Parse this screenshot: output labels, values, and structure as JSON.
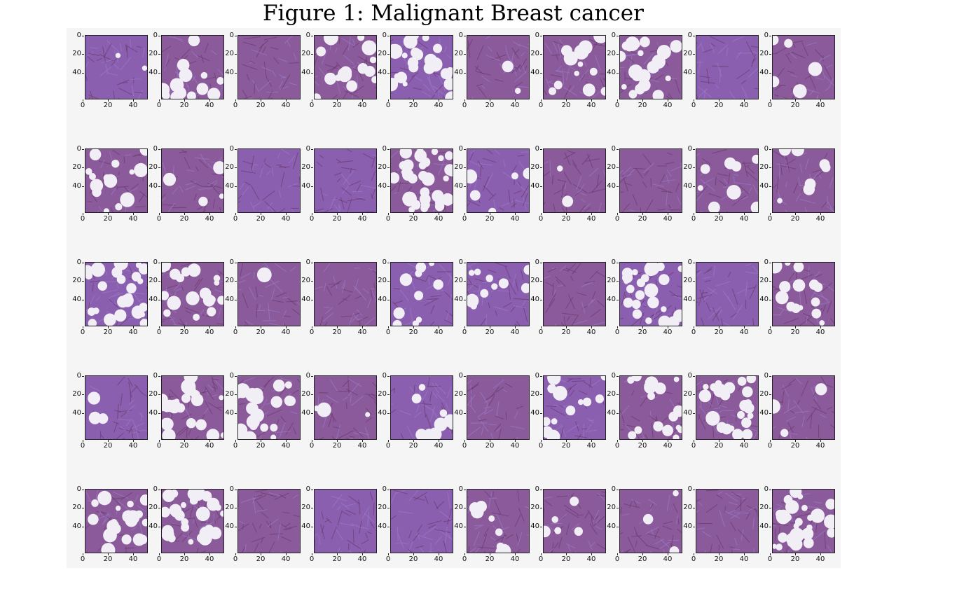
{
  "figure": {
    "title": "Figure 1: Malignant Breast cancer",
    "background_color": "#f5f5f5"
  },
  "grid": {
    "rows": 5,
    "cols": 10,
    "y_ticks": [
      "0",
      "20",
      "40"
    ],
    "x_ticks": [
      "0",
      "20",
      "40"
    ]
  },
  "tile_colors": {
    "stroma": "#8b5fb0",
    "nuclei": "#6e3a6e",
    "fat": "#f1eef5"
  },
  "tiles": [
    {
      "fat": 0.05,
      "tone": "blue"
    },
    {
      "fat": 0.35,
      "tone": "mauve"
    },
    {
      "fat": 0.0,
      "tone": "mauve"
    },
    {
      "fat": 0.35,
      "tone": "mauve"
    },
    {
      "fat": 0.6,
      "tone": "blue"
    },
    {
      "fat": 0.05,
      "tone": "mauve"
    },
    {
      "fat": 0.3,
      "tone": "mauve"
    },
    {
      "fat": 0.5,
      "tone": "mauve"
    },
    {
      "fat": 0.0,
      "tone": "blue"
    },
    {
      "fat": 0.12,
      "tone": "mauve"
    },
    {
      "fat": 0.35,
      "tone": "mauve"
    },
    {
      "fat": 0.12,
      "tone": "mauve"
    },
    {
      "fat": 0.0,
      "tone": "blue"
    },
    {
      "fat": 0.0,
      "tone": "blue"
    },
    {
      "fat": 0.75,
      "tone": "mauve"
    },
    {
      "fat": 0.12,
      "tone": "blue"
    },
    {
      "fat": 0.05,
      "tone": "mauve"
    },
    {
      "fat": 0.0,
      "tone": "mauve"
    },
    {
      "fat": 0.2,
      "tone": "mauve"
    },
    {
      "fat": 0.18,
      "tone": "mauve"
    },
    {
      "fat": 0.6,
      "tone": "blue"
    },
    {
      "fat": 0.45,
      "tone": "mauve"
    },
    {
      "fat": 0.05,
      "tone": "mauve"
    },
    {
      "fat": 0.0,
      "tone": "mauve"
    },
    {
      "fat": 0.25,
      "tone": "blue"
    },
    {
      "fat": 0.25,
      "tone": "blue"
    },
    {
      "fat": 0.0,
      "tone": "mauve"
    },
    {
      "fat": 0.6,
      "tone": "blue"
    },
    {
      "fat": 0.0,
      "tone": "blue"
    },
    {
      "fat": 0.35,
      "tone": "mauve"
    },
    {
      "fat": 0.08,
      "tone": "blue"
    },
    {
      "fat": 0.6,
      "tone": "mauve"
    },
    {
      "fat": 0.5,
      "tone": "mauve"
    },
    {
      "fat": 0.08,
      "tone": "mauve"
    },
    {
      "fat": 0.25,
      "tone": "blue"
    },
    {
      "fat": 0.0,
      "tone": "mauve"
    },
    {
      "fat": 0.3,
      "tone": "blue"
    },
    {
      "fat": 0.45,
      "tone": "mauve"
    },
    {
      "fat": 0.55,
      "tone": "mauve"
    },
    {
      "fat": 0.08,
      "tone": "mauve"
    },
    {
      "fat": 0.5,
      "tone": "mauve"
    },
    {
      "fat": 0.7,
      "tone": "mauve"
    },
    {
      "fat": 0.0,
      "tone": "mauve"
    },
    {
      "fat": 0.0,
      "tone": "blue"
    },
    {
      "fat": 0.0,
      "tone": "blue"
    },
    {
      "fat": 0.2,
      "tone": "mauve"
    },
    {
      "fat": 0.12,
      "tone": "mauve"
    },
    {
      "fat": 0.08,
      "tone": "mauve"
    },
    {
      "fat": 0.0,
      "tone": "mauve"
    },
    {
      "fat": 0.65,
      "tone": "mauve"
    }
  ]
}
